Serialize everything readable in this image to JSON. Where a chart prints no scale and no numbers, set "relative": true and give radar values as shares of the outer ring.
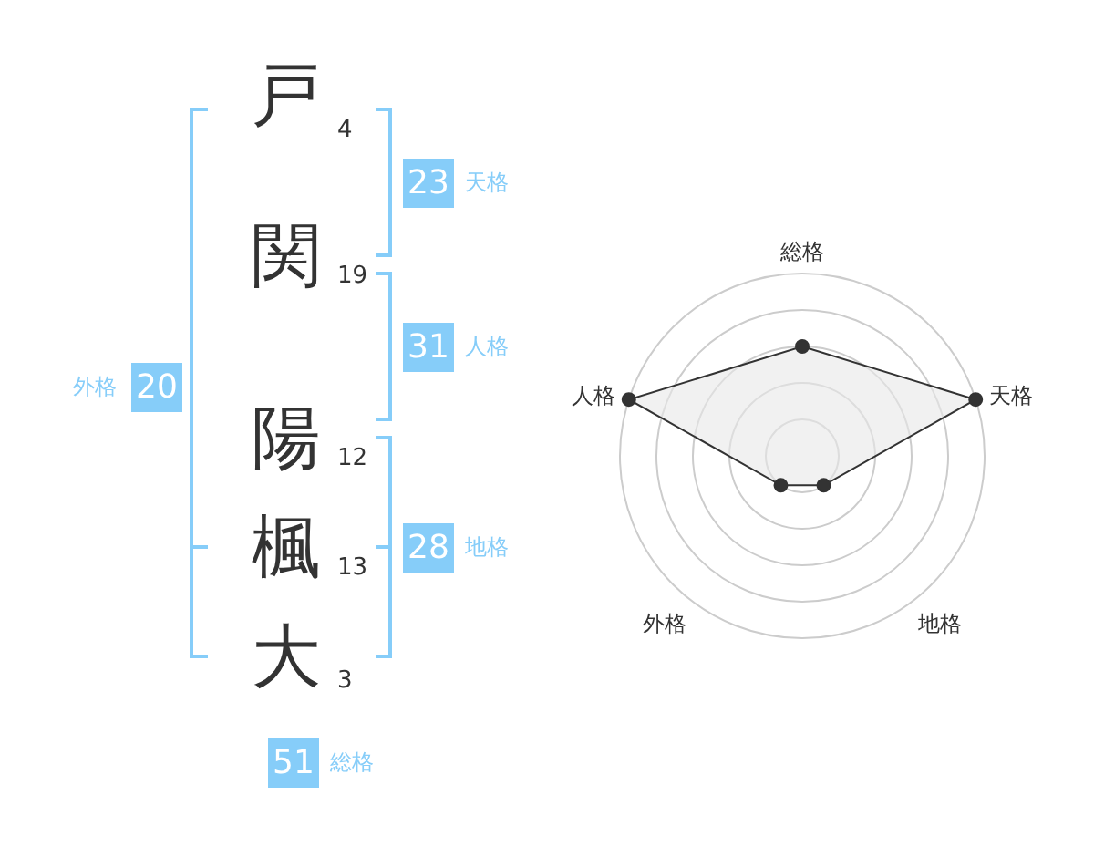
{
  "chart_data": [
    {
      "type": "other",
      "categories": [
        "戸",
        "関",
        "陽",
        "楓",
        "大"
      ],
      "values": [
        4,
        19,
        12,
        13,
        3
      ],
      "data_labels": true,
      "annotations": [
        "23",
        "天格",
        "31",
        "人格",
        "28",
        "地格",
        "20",
        "外格",
        "51",
        "総格"
      ]
    },
    {
      "type": "radar",
      "categories": [
        "総格",
        "天格",
        "地格",
        "外格",
        "人格"
      ],
      "relative": true,
      "grid": true,
      "marker": "circle",
      "series": [
        {
          "color": "#333333",
          "values": [
            0.6,
            1,
            0.2,
            0.2,
            1
          ]
        }
      ]
    }
  ]
}
